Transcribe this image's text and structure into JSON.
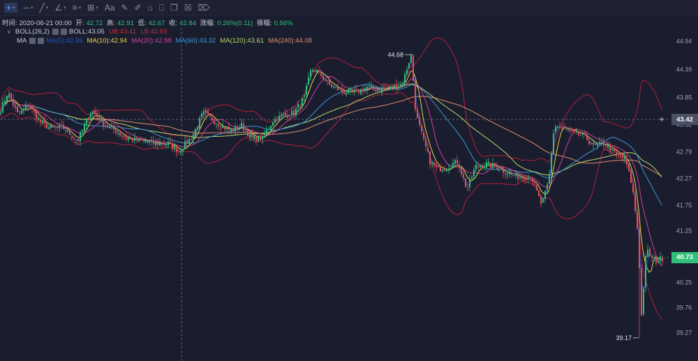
{
  "toolbar": {
    "tools": [
      {
        "name": "crosshair-tool-button",
        "glyph": "+",
        "has_menu": true,
        "active": true
      },
      {
        "name": "line-tool-button",
        "glyph": "─",
        "has_menu": true
      },
      {
        "name": "trend-tool-button",
        "glyph": "╱",
        "has_menu": true
      },
      {
        "name": "angle-tool-button",
        "glyph": "∠",
        "has_menu": true
      },
      {
        "name": "fib-tool-button",
        "glyph": "≡",
        "has_menu": true
      },
      {
        "name": "shape-tool-button",
        "glyph": "⊞",
        "has_menu": true
      },
      {
        "name": "text-tool-button",
        "glyph": "Aa",
        "has_menu": false
      },
      {
        "name": "brush-tool-button",
        "glyph": "✎",
        "has_menu": false
      },
      {
        "name": "ruler-tool-button",
        "glyph": "✐",
        "has_menu": false
      },
      {
        "name": "magnet-tool-button",
        "glyph": "⌂",
        "has_menu": false
      },
      {
        "name": "lock-tool-button",
        "glyph": "⎕",
        "has_menu": false
      },
      {
        "name": "copy-tool-button",
        "glyph": "❐",
        "has_menu": false
      },
      {
        "name": "visibility-tool-button",
        "glyph": "☒",
        "has_menu": false
      },
      {
        "name": "delete-tool-button",
        "glyph": "⌦",
        "has_menu": false
      }
    ]
  },
  "ohlc": {
    "time_label": "时间:",
    "time": "2020-06-21 00:00",
    "open_label": "开:",
    "open": "42.72",
    "high_label": "高:",
    "high": "42.91",
    "low_label": "低:",
    "low": "42.67",
    "close_label": "收:",
    "close": "42.84",
    "change_label": "涨幅:",
    "change": "0.26%(0.11)",
    "amplitude_label": "振幅:",
    "amplitude": "0.56%"
  },
  "boll": {
    "name": "BOLL(26,2)",
    "mid": "BOLL:43.05",
    "ub": "UB:43.41",
    "lb": "LB:42.69"
  },
  "ma": {
    "name": "MA",
    "ma5": "MA(5):42.86",
    "ma10": "MA(10):42.94",
    "ma20": "MA(20):42.98",
    "ma60": "MA(60):43.32",
    "ma120": "MA(120):43.61",
    "ma240": "MA(240):44.08"
  },
  "colors": {
    "up": "#30c07a",
    "down": "#e0505a",
    "boll": "#9b1f3a",
    "boll_mid": "#b0b4c4",
    "ma5": "#1f4fa8",
    "ma10": "#e8d84a",
    "ma20": "#d040a0",
    "ma60": "#3a9ad8",
    "ma120": "#b8d86a",
    "ma240": "#e09070"
  },
  "axis": {
    "ticks": [
      "44.94",
      "44.39",
      "43.85",
      "43.32",
      "42.79",
      "42.27",
      "41.75",
      "41.25",
      "40.73",
      "40.25",
      "39.76",
      "39.27"
    ],
    "current_price": "40.73",
    "crosshair_price": "43.42"
  },
  "annotations": {
    "high": "44.68",
    "low": "39.17"
  },
  "chart_data": {
    "type": "candlestick",
    "title": "",
    "ylim": [
      38.95,
      45.2
    ],
    "high_marker": 44.68,
    "low_marker": 39.17,
    "last_close": 40.73,
    "anchors": [
      [
        0,
        43.6
      ],
      [
        10,
        43.95
      ],
      [
        25,
        43.5
      ],
      [
        40,
        43.7
      ],
      [
        55,
        43.4
      ],
      [
        70,
        43.25
      ],
      [
        90,
        43.25
      ],
      [
        110,
        43.0
      ],
      [
        130,
        43.6
      ],
      [
        150,
        43.3
      ],
      [
        165,
        43.2
      ],
      [
        180,
        43.05
      ],
      [
        200,
        43.0
      ],
      [
        220,
        42.95
      ],
      [
        240,
        42.95
      ],
      [
        255,
        42.8
      ],
      [
        275,
        43.1
      ],
      [
        290,
        43.55
      ],
      [
        300,
        43.45
      ],
      [
        315,
        43.3
      ],
      [
        330,
        43.2
      ],
      [
        345,
        43.3
      ],
      [
        360,
        43.05
      ],
      [
        375,
        43.05
      ],
      [
        390,
        43.4
      ],
      [
        405,
        43.5
      ],
      [
        420,
        43.55
      ],
      [
        435,
        43.85
      ],
      [
        445,
        44.4
      ],
      [
        455,
        44.35
      ],
      [
        470,
        44.1
      ],
      [
        490,
        43.95
      ],
      [
        510,
        43.95
      ],
      [
        525,
        44.05
      ],
      [
        540,
        44.0
      ],
      [
        560,
        44.05
      ],
      [
        575,
        44.1
      ],
      [
        588,
        44.68
      ],
      [
        595,
        43.5
      ],
      [
        605,
        43.05
      ],
      [
        615,
        42.6
      ],
      [
        625,
        42.45
      ],
      [
        640,
        42.5
      ],
      [
        655,
        42.6
      ],
      [
        668,
        42.05
      ],
      [
        680,
        42.5
      ],
      [
        695,
        42.55
      ],
      [
        710,
        42.5
      ],
      [
        730,
        42.35
      ],
      [
        745,
        42.3
      ],
      [
        760,
        42.3
      ],
      [
        775,
        41.75
      ],
      [
        785,
        42.2
      ],
      [
        793,
        43.3
      ],
      [
        805,
        43.25
      ],
      [
        820,
        43.15
      ],
      [
        835,
        43.1
      ],
      [
        850,
        42.9
      ],
      [
        865,
        42.95
      ],
      [
        880,
        42.75
      ],
      [
        895,
        42.65
      ],
      [
        905,
        42.1
      ],
      [
        913,
        41.2
      ],
      [
        918,
        39.6
      ],
      [
        925,
        40.9
      ],
      [
        935,
        40.65
      ],
      [
        950,
        40.73
      ]
    ]
  }
}
